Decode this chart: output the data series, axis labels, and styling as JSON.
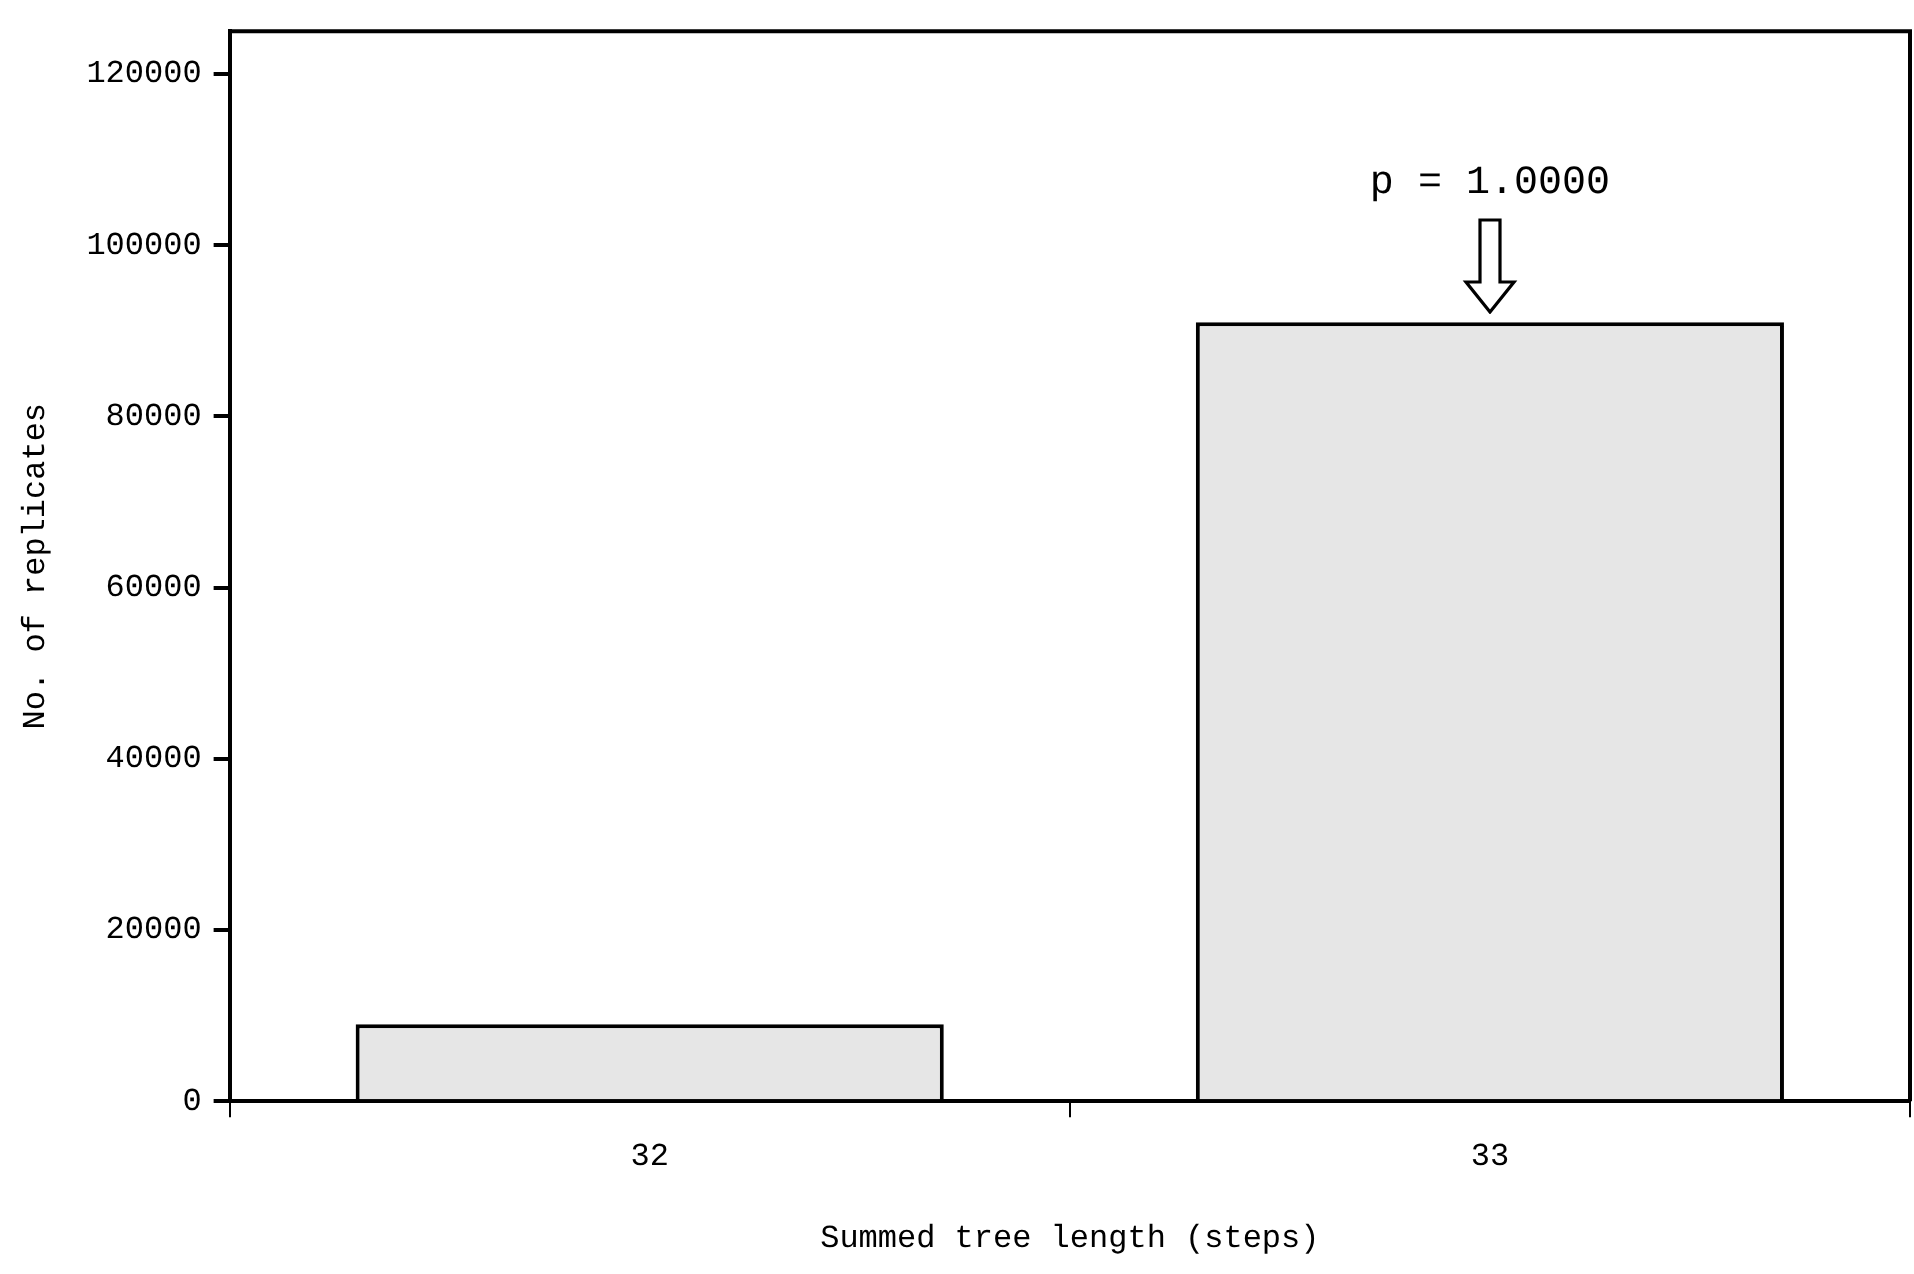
{
  "chart_data": {
    "type": "bar",
    "xlabel": "Summed tree length (steps)",
    "ylabel": "No. of replicates",
    "categories": [
      "32",
      "33"
    ],
    "values": [
      9000,
      91000
    ],
    "color": "#e6e6e6",
    "ylim": [
      0,
      125000
    ],
    "yticks": [
      0,
      20000,
      40000,
      60000,
      80000,
      100000,
      120000
    ],
    "annotations": [
      {
        "text": "p = 1.0000",
        "x": "33",
        "y": 91000
      }
    ]
  }
}
